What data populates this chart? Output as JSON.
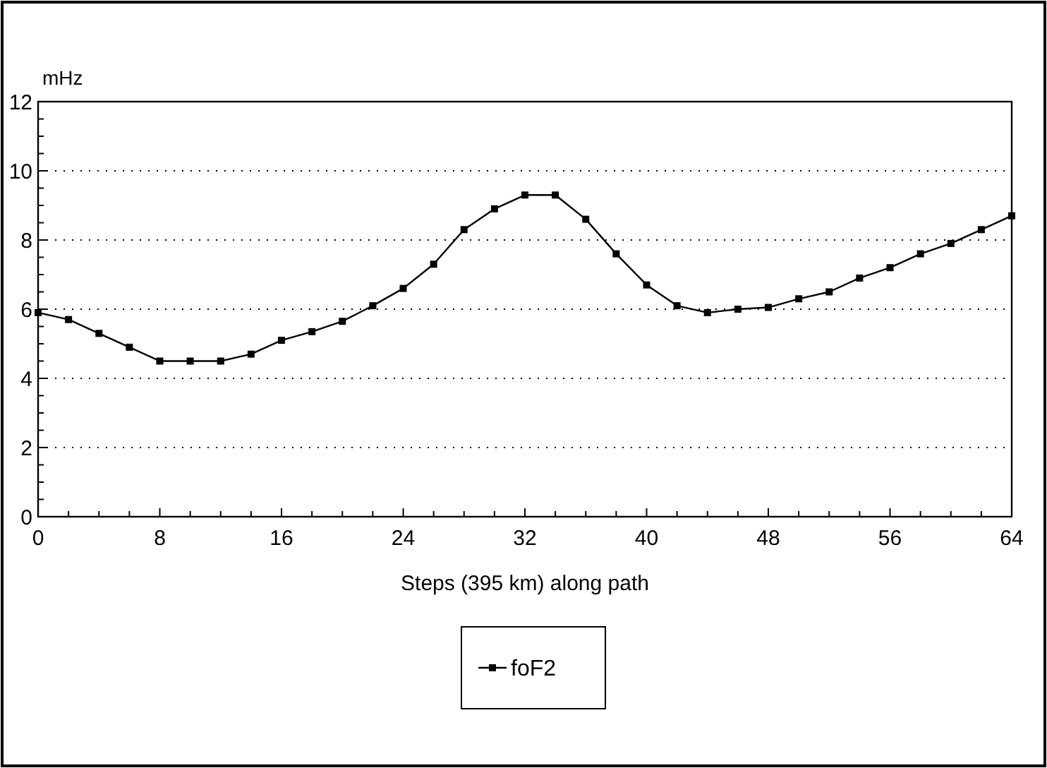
{
  "chart_data": {
    "type": "line",
    "ylabel": "mHz",
    "xlabel": "Steps (395 km) along path",
    "x": [
      0,
      2,
      4,
      6,
      8,
      10,
      12,
      14,
      16,
      18,
      20,
      22,
      24,
      26,
      28,
      30,
      32,
      34,
      36,
      38,
      40,
      42,
      44,
      46,
      48,
      50,
      52,
      54,
      56,
      58,
      60,
      62,
      64
    ],
    "series": [
      {
        "name": "foF2",
        "color": "#000000",
        "values": [
          5.9,
          5.7,
          5.3,
          4.9,
          4.5,
          4.5,
          4.5,
          4.7,
          5.1,
          5.35,
          5.65,
          6.1,
          6.6,
          7.3,
          8.3,
          8.9,
          9.3,
          9.3,
          8.6,
          7.6,
          6.7,
          6.1,
          5.9,
          6.0,
          6.05,
          6.3,
          6.5,
          6.9,
          7.2,
          7.6,
          7.9,
          8.3,
          8.7
        ]
      }
    ],
    "xlim": [
      0,
      64
    ],
    "xticks": [
      0,
      8,
      16,
      24,
      32,
      40,
      48,
      56,
      64
    ],
    "ylim": [
      0,
      12
    ],
    "yticks": [
      0,
      2,
      4,
      6,
      8,
      10,
      12
    ],
    "grid": "y",
    "legend": "bottom",
    "marker": "square",
    "line_style": "solid"
  }
}
